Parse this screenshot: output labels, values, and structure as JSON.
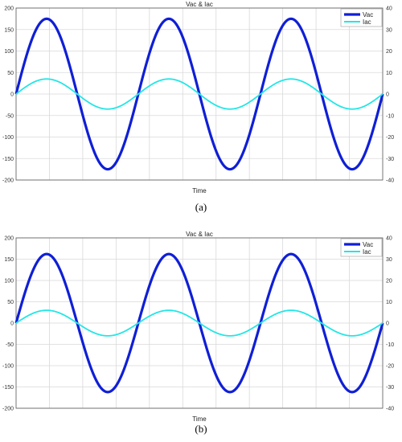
{
  "chart_data": [
    {
      "panel": "(a)",
      "type": "line",
      "title": "Vac & Iac",
      "xlabel": "Time",
      "ylim_left": [
        -200,
        200
      ],
      "ylim_right": [
        -40,
        40
      ],
      "yticks_left": [
        200,
        150,
        100,
        50,
        0,
        -50,
        -100,
        -150,
        -200
      ],
      "yticks_right": [
        40,
        30,
        20,
        10,
        0,
        -10,
        -20,
        -30,
        -40
      ],
      "x_cycles": 3,
      "grid": true,
      "legend_position": "top-right",
      "series": [
        {
          "name": "Vac",
          "axis": "left",
          "color": "#0f1fd6",
          "amplitude": 175,
          "cycles": 3
        },
        {
          "name": "Iac",
          "axis": "right",
          "color": "#22e6e6",
          "amplitude": 7,
          "cycles": 3
        }
      ]
    },
    {
      "panel": "(b)",
      "type": "line",
      "title": "Vac & Iac",
      "xlabel": "Time",
      "ylim_left": [
        -200,
        200
      ],
      "ylim_right": [
        -40,
        40
      ],
      "yticks_left": [
        200,
        150,
        100,
        50,
        0,
        -50,
        -100,
        -150,
        -200
      ],
      "yticks_right": [
        40,
        30,
        20,
        10,
        0,
        -10,
        -20,
        -30,
        -40
      ],
      "x_cycles": 3,
      "grid": true,
      "legend_position": "top-right",
      "series": [
        {
          "name": "Vac",
          "axis": "left",
          "color": "#0f1fd6",
          "amplitude": 162,
          "cycles": 3
        },
        {
          "name": "Iac",
          "axis": "right",
          "color": "#22e6e6",
          "amplitude": 6,
          "cycles": 3
        }
      ]
    }
  ]
}
